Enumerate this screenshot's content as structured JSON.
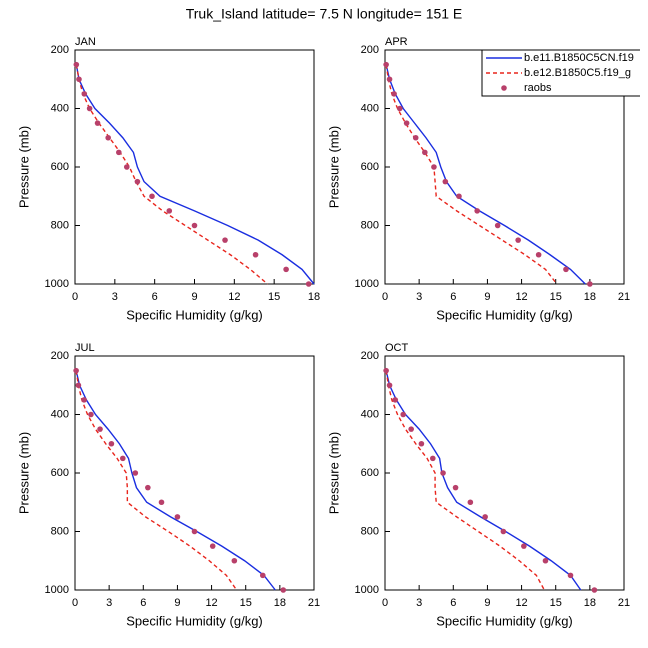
{
  "title": "Truk_Island  latitude= 7.5 N longitude= 151 E",
  "chart_data": [
    {
      "type": "line",
      "title": "JAN",
      "xlabel": "Specific Humidity (g/kg)",
      "ylabel": "Pressure (mb)",
      "y": [
        250,
        300,
        350,
        400,
        450,
        500,
        550,
        600,
        650,
        700,
        750,
        800,
        850,
        900,
        950,
        1000
      ],
      "xlim": [
        0,
        18
      ],
      "xticks": [
        0,
        3,
        6,
        9,
        12,
        15,
        18
      ],
      "ylim": [
        1000,
        200
      ],
      "yticks": [
        200,
        400,
        600,
        800,
        1000
      ],
      "series": [
        {
          "color": "#1a2ee0",
          "style": "solid",
          "values": [
            0.1,
            0.3,
            0.8,
            1.5,
            2.6,
            3.6,
            4.4,
            4.7,
            5.2,
            6.4,
            9.0,
            11.5,
            13.8,
            15.6,
            17.1,
            18.0
          ]
        },
        {
          "color": "#e8251c",
          "style": "dashed",
          "values": [
            0.1,
            0.3,
            0.6,
            1.1,
            1.8,
            2.6,
            3.4,
            4.1,
            4.6,
            5.2,
            6.6,
            8.3,
            10.0,
            11.7,
            13.2,
            14.5
          ]
        },
        {
          "color": "#b8406a",
          "style": "markers",
          "values": [
            0.1,
            0.3,
            0.7,
            1.1,
            1.7,
            2.5,
            3.3,
            3.9,
            4.7,
            5.8,
            7.1,
            9.0,
            11.3,
            13.6,
            15.9,
            17.6
          ]
        }
      ]
    },
    {
      "type": "line",
      "title": "APR",
      "xlabel": "Specific Humidity (g/kg)",
      "ylabel": "Pressure (mb)",
      "y": [
        250,
        300,
        350,
        400,
        450,
        500,
        550,
        600,
        650,
        700,
        750,
        800,
        850,
        900,
        950,
        1000
      ],
      "xlim": [
        0,
        21
      ],
      "xticks": [
        0,
        3,
        6,
        9,
        12,
        15,
        18,
        21
      ],
      "ylim": [
        1000,
        200
      ],
      "yticks": [
        200,
        400,
        600,
        800,
        1000
      ],
      "legend": "top-right",
      "series": [
        {
          "name": "b.e11.B1850C5CN.f19",
          "color": "#1a2ee0",
          "style": "solid",
          "values": [
            0.1,
            0.4,
            0.9,
            1.6,
            2.6,
            3.6,
            4.5,
            4.9,
            5.4,
            6.3,
            8.3,
            10.5,
            12.6,
            14.5,
            16.3,
            17.6
          ]
        },
        {
          "name": "b.e12.B1850C5.f19_g",
          "color": "#e8251c",
          "style": "dashed",
          "values": [
            0.1,
            0.3,
            0.6,
            1.1,
            1.8,
            2.6,
            3.5,
            4.3,
            4.4,
            4.5,
            6.3,
            8.3,
            10.3,
            12.3,
            14.1,
            15.1
          ]
        },
        {
          "name": "raobs",
          "color": "#b8406a",
          "style": "markers",
          "values": [
            0.1,
            0.4,
            0.8,
            1.3,
            1.9,
            2.7,
            3.5,
            4.3,
            5.3,
            6.5,
            8.1,
            9.9,
            11.7,
            13.5,
            15.9,
            18.0
          ]
        }
      ]
    },
    {
      "type": "line",
      "title": "JUL",
      "xlabel": "Specific Humidity (g/kg)",
      "ylabel": "Pressure (mb)",
      "y": [
        250,
        300,
        350,
        400,
        450,
        500,
        550,
        600,
        650,
        700,
        750,
        800,
        850,
        900,
        950,
        1000
      ],
      "xlim": [
        0,
        21
      ],
      "xticks": [
        0,
        3,
        6,
        9,
        12,
        15,
        18,
        21
      ],
      "ylim": [
        1000,
        200
      ],
      "yticks": [
        200,
        400,
        600,
        800,
        1000
      ],
      "series": [
        {
          "color": "#1a2ee0",
          "style": "solid",
          "values": [
            0.1,
            0.4,
            1.0,
            1.8,
            2.9,
            3.9,
            4.7,
            5.0,
            5.4,
            6.3,
            8.4,
            10.7,
            12.9,
            14.9,
            16.6,
            17.6
          ]
        },
        {
          "color": "#e8251c",
          "style": "dashed",
          "values": [
            0.1,
            0.3,
            0.6,
            1.1,
            1.8,
            2.7,
            3.7,
            4.5,
            4.6,
            4.6,
            6.2,
            8.2,
            10.1,
            11.8,
            13.3,
            14.2
          ]
        },
        {
          "color": "#b8406a",
          "style": "markers",
          "values": [
            0.1,
            0.3,
            0.8,
            1.4,
            2.2,
            3.2,
            4.2,
            5.3,
            6.4,
            7.6,
            9.0,
            10.5,
            12.1,
            14.0,
            16.5,
            18.3
          ]
        }
      ]
    },
    {
      "type": "line",
      "title": "OCT",
      "xlabel": "Specific Humidity (g/kg)",
      "ylabel": "Pressure (mb)",
      "y": [
        250,
        300,
        350,
        400,
        450,
        500,
        550,
        600,
        650,
        700,
        750,
        800,
        850,
        900,
        950,
        1000
      ],
      "xlim": [
        0,
        21
      ],
      "xticks": [
        0,
        3,
        6,
        9,
        12,
        15,
        18,
        21
      ],
      "ylim": [
        1000,
        200
      ],
      "yticks": [
        200,
        400,
        600,
        800,
        1000
      ],
      "series": [
        {
          "color": "#1a2ee0",
          "style": "solid",
          "values": [
            0.1,
            0.4,
            1.0,
            1.8,
            3.0,
            4.0,
            4.8,
            5.0,
            5.5,
            6.3,
            8.4,
            10.6,
            12.7,
            14.6,
            16.3,
            17.2
          ]
        },
        {
          "color": "#e8251c",
          "style": "dashed",
          "values": [
            0.1,
            0.3,
            0.6,
            1.1,
            1.8,
            2.7,
            3.7,
            4.4,
            4.4,
            4.5,
            6.3,
            8.2,
            10.1,
            11.8,
            13.3,
            14.0
          ]
        },
        {
          "color": "#b8406a",
          "style": "markers",
          "values": [
            0.1,
            0.4,
            0.9,
            1.6,
            2.3,
            3.2,
            4.2,
            5.1,
            6.2,
            7.5,
            8.8,
            10.4,
            12.2,
            14.1,
            16.3,
            18.4
          ]
        }
      ]
    }
  ]
}
